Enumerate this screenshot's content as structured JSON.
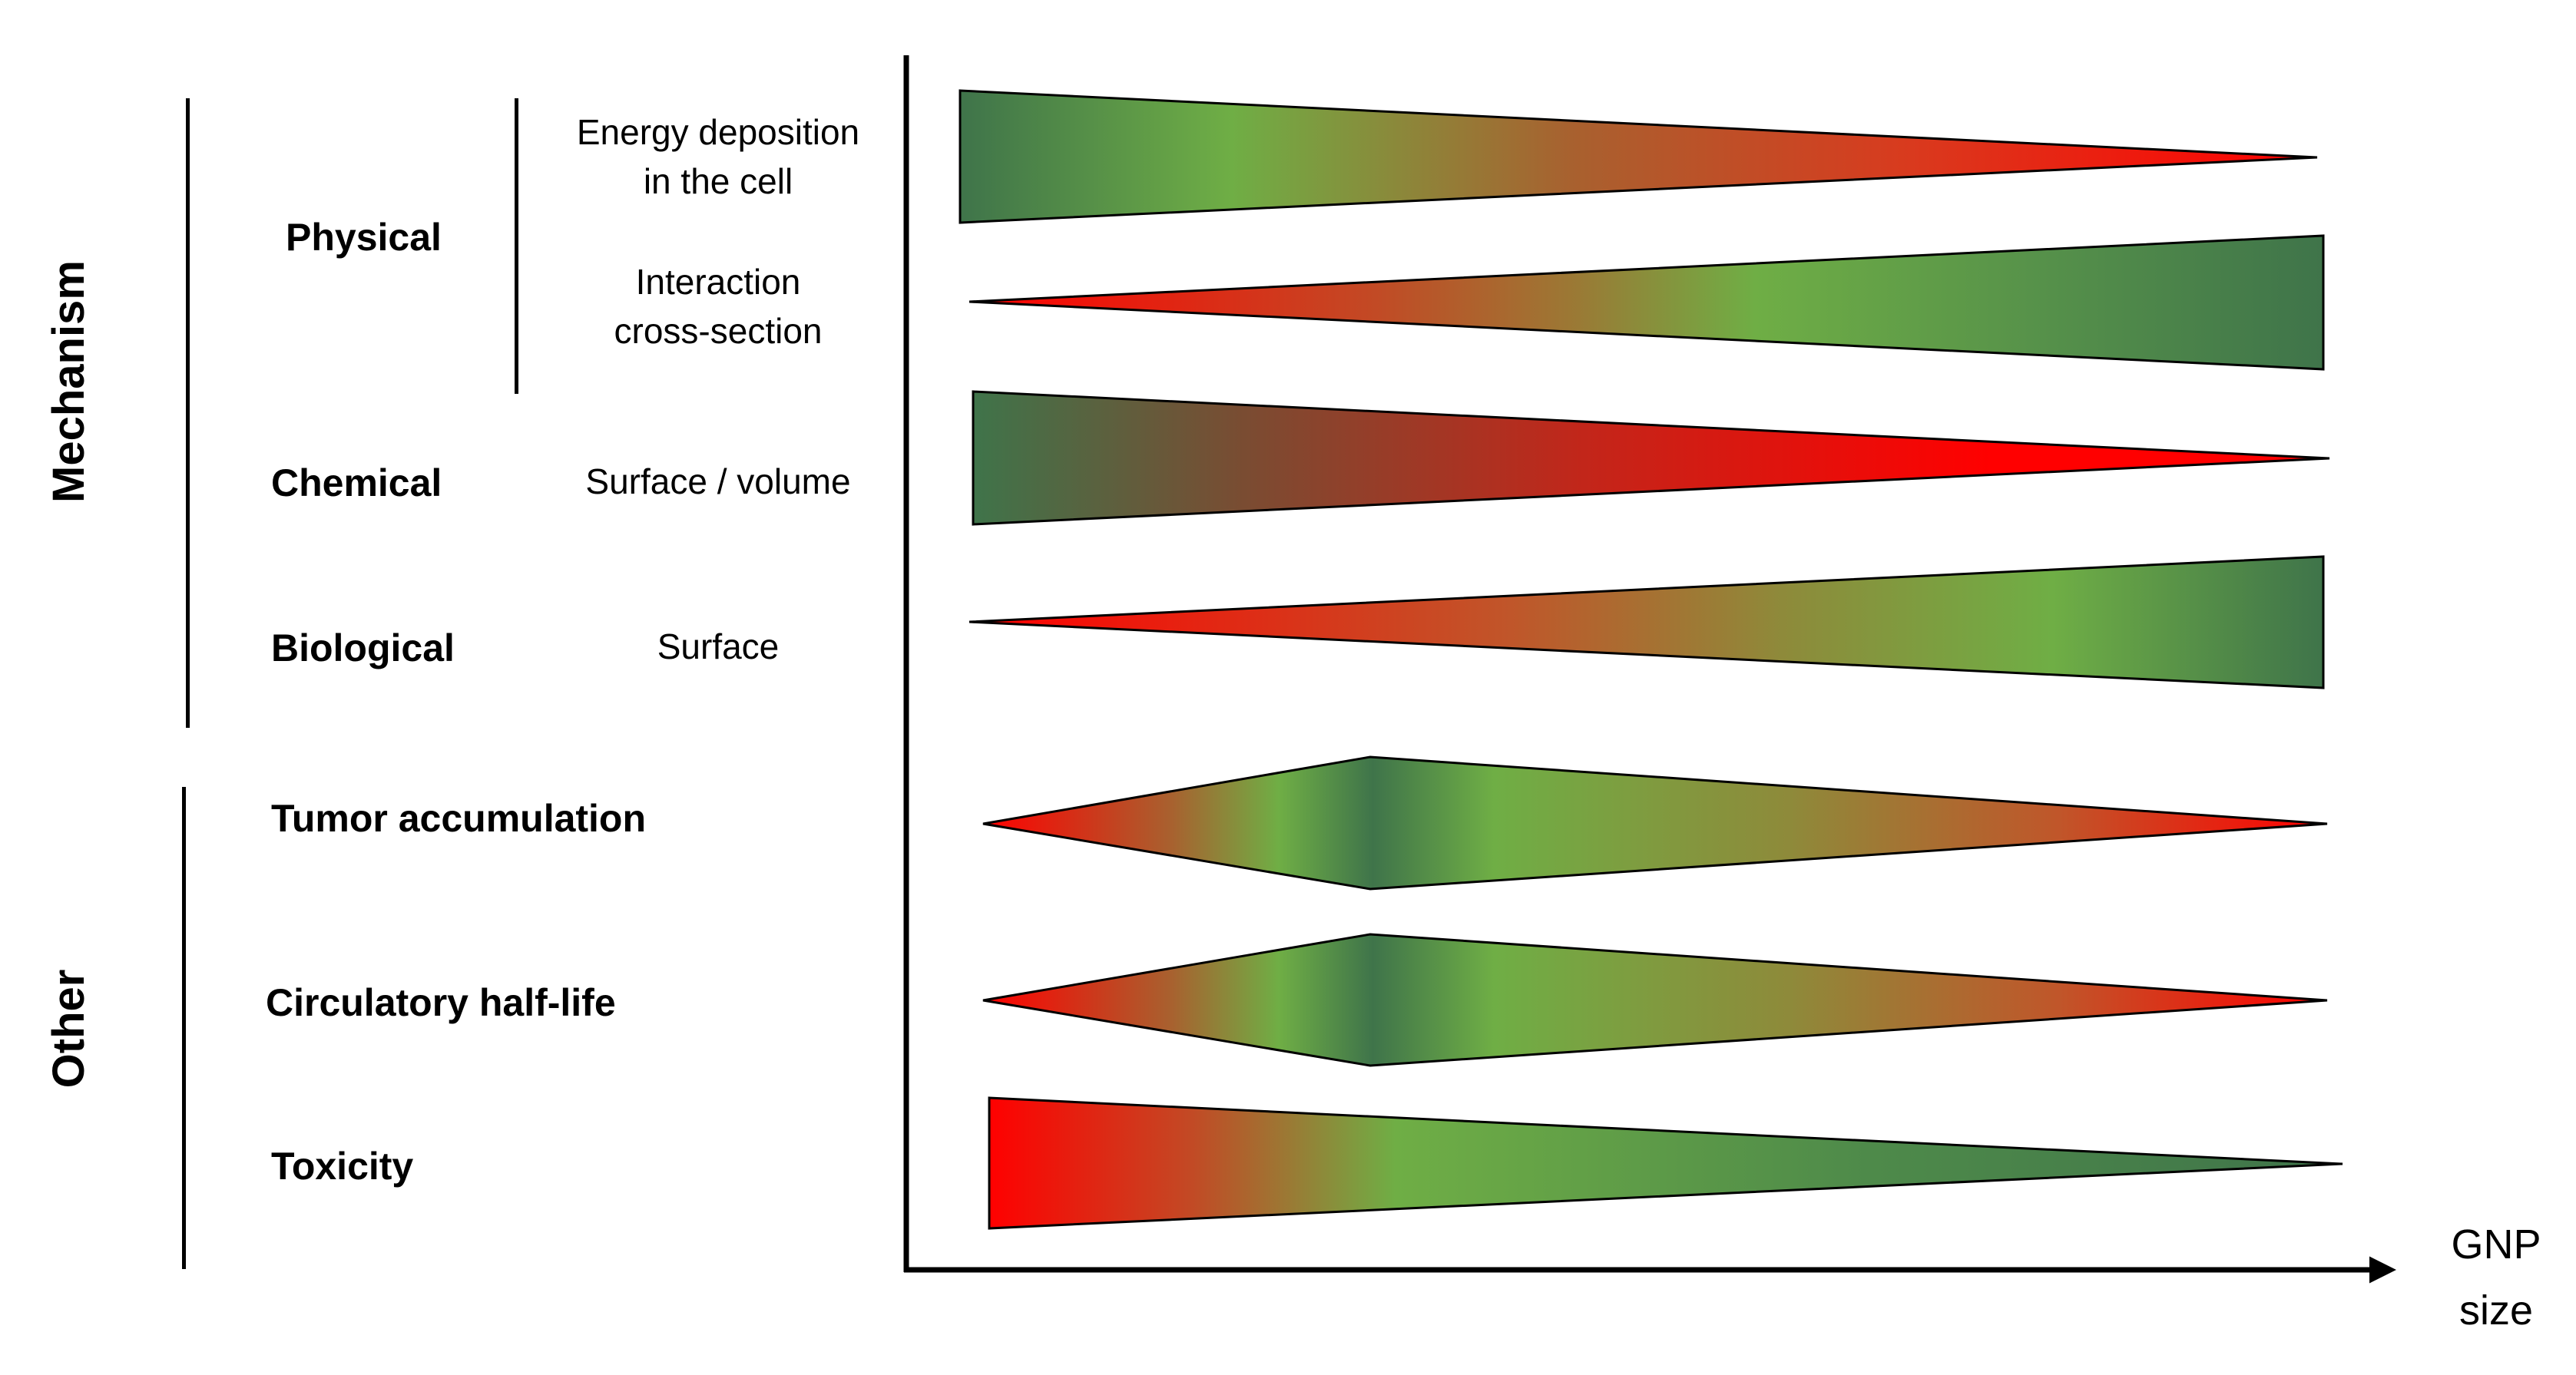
{
  "groups": {
    "mechanism": "Mechanism",
    "other": "Other"
  },
  "categories": {
    "physical": "Physical",
    "chemical": "Chemical",
    "biological": "Biological",
    "tumor": "Tumor accumulation",
    "circulatory": "Circulatory half-life",
    "toxicity": "Toxicity"
  },
  "sublabels": {
    "energy_line1": "Energy deposition",
    "energy_line2": "in the cell",
    "interaction_line1": "Interaction",
    "interaction_line2": "cross-section",
    "surface_volume": "Surface / volume",
    "surface": "Surface"
  },
  "axis": {
    "label_line1": "GNP",
    "label_line2": "size"
  },
  "colors": {
    "good": "#6fae45",
    "dark_good": "#3f744a",
    "bad": "#ff0000",
    "mid": "#a8612f",
    "axis": "#000000"
  },
  "wedges": [
    {
      "name": "energy-deposition-wedge",
      "trend": "decreasing"
    },
    {
      "name": "interaction-cross-section-wedge",
      "trend": "increasing"
    },
    {
      "name": "surface-volume-wedge",
      "trend": "decreasing"
    },
    {
      "name": "surface-wedge",
      "trend": "increasing"
    },
    {
      "name": "tumor-accumulation-wedge",
      "trend": "peak-at-small-size"
    },
    {
      "name": "circulatory-half-life-wedge",
      "trend": "peak-at-small-size"
    },
    {
      "name": "toxicity-wedge",
      "trend": "decreasing"
    }
  ]
}
